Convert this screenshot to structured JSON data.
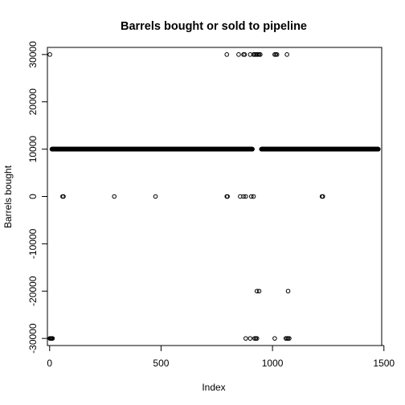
{
  "chart_data": {
    "type": "scatter",
    "title": "Barrels bought or sold to pipeline",
    "xlabel": "Index",
    "ylabel": "Barrels bought",
    "xlim": [
      -10,
      1490
    ],
    "ylim": [
      -31500,
      31500
    ],
    "xticks": [
      0,
      500,
      1000,
      1500
    ],
    "xtick_labels": [
      "0",
      "500",
      "1000",
      "1500"
    ],
    "yticks": [
      -30000,
      -20000,
      -10000,
      0,
      10000,
      20000,
      30000
    ],
    "ytick_labels": [
      "-30000",
      "-20000",
      "-10000",
      "0",
      "10000",
      "20000",
      "30000"
    ],
    "grid": false,
    "marker": "open-circle",
    "color": "#000000",
    "runs": [
      {
        "from": 10,
        "to": 910,
        "value": 10000
      },
      {
        "from": 950,
        "to": 1475,
        "value": 10000
      }
    ],
    "points": [
      {
        "x": 1,
        "y": 30000
      },
      {
        "x": 795,
        "y": 30000
      },
      {
        "x": 848,
        "y": 30000
      },
      {
        "x": 870,
        "y": 30000
      },
      {
        "x": 875,
        "y": 30000
      },
      {
        "x": 900,
        "y": 30000
      },
      {
        "x": 915,
        "y": 30000
      },
      {
        "x": 920,
        "y": 30000
      },
      {
        "x": 925,
        "y": 30000
      },
      {
        "x": 930,
        "y": 30000
      },
      {
        "x": 935,
        "y": 30000
      },
      {
        "x": 940,
        "y": 30000
      },
      {
        "x": 945,
        "y": 30000
      },
      {
        "x": 1010,
        "y": 30000
      },
      {
        "x": 1015,
        "y": 30000
      },
      {
        "x": 1020,
        "y": 30000
      },
      {
        "x": 1065,
        "y": 30000
      },
      {
        "x": 58,
        "y": 0
      },
      {
        "x": 62,
        "y": 0
      },
      {
        "x": 290,
        "y": 0
      },
      {
        "x": 475,
        "y": 0
      },
      {
        "x": 795,
        "y": 0
      },
      {
        "x": 798,
        "y": 0
      },
      {
        "x": 855,
        "y": 0
      },
      {
        "x": 870,
        "y": 0
      },
      {
        "x": 880,
        "y": 0
      },
      {
        "x": 905,
        "y": 0
      },
      {
        "x": 915,
        "y": 0
      },
      {
        "x": 1222,
        "y": 0
      },
      {
        "x": 1226,
        "y": 0
      },
      {
        "x": 930,
        "y": -20000
      },
      {
        "x": 940,
        "y": -20000
      },
      {
        "x": 1070,
        "y": -20000
      },
      {
        "x": 1,
        "y": -30000
      },
      {
        "x": 4,
        "y": -30000
      },
      {
        "x": 7,
        "y": -30000
      },
      {
        "x": 10,
        "y": -30000
      },
      {
        "x": 13,
        "y": -30000
      },
      {
        "x": 880,
        "y": -30000
      },
      {
        "x": 900,
        "y": -30000
      },
      {
        "x": 920,
        "y": -30000
      },
      {
        "x": 925,
        "y": -30000
      },
      {
        "x": 930,
        "y": -30000
      },
      {
        "x": 1010,
        "y": -30000
      },
      {
        "x": 1060,
        "y": -30000
      },
      {
        "x": 1065,
        "y": -30000
      },
      {
        "x": 1070,
        "y": -30000
      },
      {
        "x": 1075,
        "y": -30000
      }
    ]
  }
}
